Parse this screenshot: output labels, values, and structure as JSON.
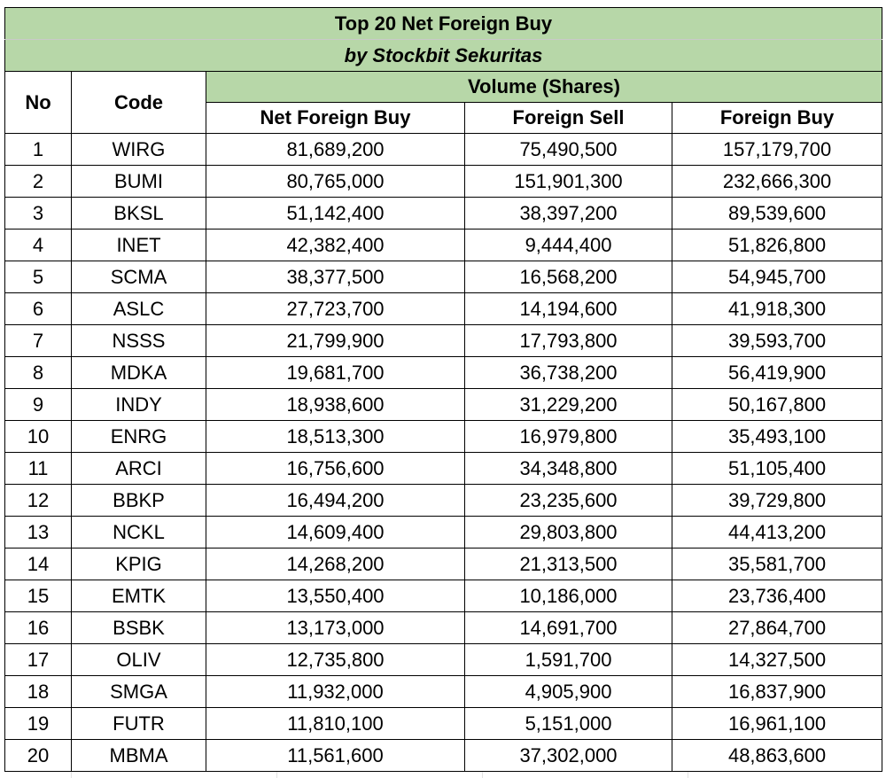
{
  "title": "Top 20 Net Foreign Buy",
  "subtitle": "by Stockbit Sekuritas",
  "headers": {
    "no": "No",
    "code": "Code",
    "group": "Volume (Shares)",
    "net_foreign_buy": "Net Foreign Buy",
    "foreign_sell": "Foreign Sell",
    "foreign_buy": "Foreign Buy"
  },
  "colors": {
    "header_fill": "#b7d7a8",
    "border": "#000000"
  },
  "rows": [
    {
      "no": "1",
      "code": "WIRG",
      "net": "81,689,200",
      "sell": "75,490,500",
      "buy": "157,179,700"
    },
    {
      "no": "2",
      "code": "BUMI",
      "net": "80,765,000",
      "sell": "151,901,300",
      "buy": "232,666,300"
    },
    {
      "no": "3",
      "code": "BKSL",
      "net": "51,142,400",
      "sell": "38,397,200",
      "buy": "89,539,600"
    },
    {
      "no": "4",
      "code": "INET",
      "net": "42,382,400",
      "sell": "9,444,400",
      "buy": "51,826,800"
    },
    {
      "no": "5",
      "code": "SCMA",
      "net": "38,377,500",
      "sell": "16,568,200",
      "buy": "54,945,700"
    },
    {
      "no": "6",
      "code": "ASLC",
      "net": "27,723,700",
      "sell": "14,194,600",
      "buy": "41,918,300"
    },
    {
      "no": "7",
      "code": "NSSS",
      "net": "21,799,900",
      "sell": "17,793,800",
      "buy": "39,593,700"
    },
    {
      "no": "8",
      "code": "MDKA",
      "net": "19,681,700",
      "sell": "36,738,200",
      "buy": "56,419,900"
    },
    {
      "no": "9",
      "code": "INDY",
      "net": "18,938,600",
      "sell": "31,229,200",
      "buy": "50,167,800"
    },
    {
      "no": "10",
      "code": "ENRG",
      "net": "18,513,300",
      "sell": "16,979,800",
      "buy": "35,493,100"
    },
    {
      "no": "11",
      "code": "ARCI",
      "net": "16,756,600",
      "sell": "34,348,800",
      "buy": "51,105,400"
    },
    {
      "no": "12",
      "code": "BBKP",
      "net": "16,494,200",
      "sell": "23,235,600",
      "buy": "39,729,800"
    },
    {
      "no": "13",
      "code": "NCKL",
      "net": "14,609,400",
      "sell": "29,803,800",
      "buy": "44,413,200"
    },
    {
      "no": "14",
      "code": "KPIG",
      "net": "14,268,200",
      "sell": "21,313,500",
      "buy": "35,581,700"
    },
    {
      "no": "15",
      "code": "EMTK",
      "net": "13,550,400",
      "sell": "10,186,000",
      "buy": "23,736,400"
    },
    {
      "no": "16",
      "code": "BSBK",
      "net": "13,173,000",
      "sell": "14,691,700",
      "buy": "27,864,700"
    },
    {
      "no": "17",
      "code": "OLIV",
      "net": "12,735,800",
      "sell": "1,591,700",
      "buy": "14,327,500"
    },
    {
      "no": "18",
      "code": "SMGA",
      "net": "11,932,000",
      "sell": "4,905,900",
      "buy": "16,837,900"
    },
    {
      "no": "19",
      "code": "FUTR",
      "net": "11,810,100",
      "sell": "5,151,000",
      "buy": "16,961,100"
    },
    {
      "no": "20",
      "code": "MBMA",
      "net": "11,561,600",
      "sell": "37,302,000",
      "buy": "48,863,600"
    }
  ]
}
